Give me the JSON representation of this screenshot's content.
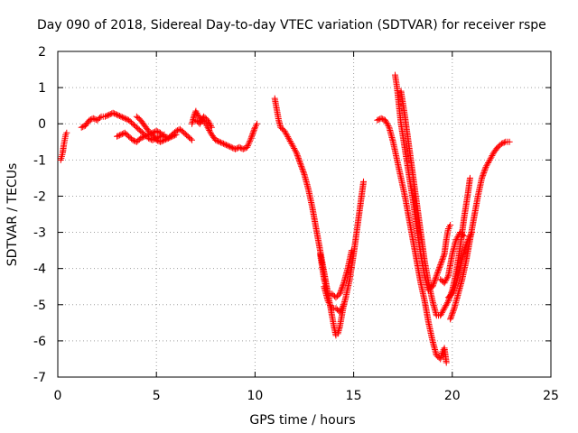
{
  "chart_data": {
    "type": "scatter",
    "title": "Day 090 of 2018, Sidereal Day-to-day VTEC variation (SDTVAR) for receiver rspe",
    "xlabel": "GPS time / hours",
    "ylabel": "SDTVAR / TECUs",
    "xlim": [
      0,
      25
    ],
    "ylim": [
      -7,
      2
    ],
    "xticks": [
      0,
      5,
      10,
      15,
      20,
      25
    ],
    "yticks": [
      2,
      1,
      0,
      -1,
      -2,
      -3,
      -4,
      -5,
      -6,
      -7
    ],
    "grid": true,
    "marker": "+",
    "color": "#ff0000",
    "series": [
      {
        "name": "arc-1",
        "points": [
          [
            0.15,
            -1.0
          ],
          [
            0.2,
            -0.9
          ],
          [
            0.25,
            -0.8
          ],
          [
            0.3,
            -0.6
          ],
          [
            0.35,
            -0.45
          ],
          [
            0.4,
            -0.3
          ],
          [
            0.45,
            -0.25
          ]
        ]
      },
      {
        "name": "arc-2",
        "points": [
          [
            1.2,
            -0.1
          ],
          [
            1.4,
            -0.05
          ],
          [
            1.6,
            0.1
          ],
          [
            1.8,
            0.15
          ],
          [
            2.0,
            0.1
          ],
          [
            2.2,
            0.2
          ],
          [
            2.4,
            0.2
          ],
          [
            2.6,
            0.25
          ],
          [
            2.8,
            0.3
          ],
          [
            3.0,
            0.25
          ],
          [
            3.2,
            0.2
          ],
          [
            3.4,
            0.15
          ],
          [
            3.6,
            0.1
          ],
          [
            3.8,
            0.0
          ],
          [
            4.0,
            -0.1
          ],
          [
            4.2,
            -0.2
          ],
          [
            4.4,
            -0.3
          ],
          [
            4.6,
            -0.4
          ],
          [
            4.8,
            -0.45
          ],
          [
            5.0,
            -0.4
          ],
          [
            5.2,
            -0.35
          ],
          [
            5.4,
            -0.3
          ]
        ]
      },
      {
        "name": "arc-3",
        "points": [
          [
            3.0,
            -0.35
          ],
          [
            3.2,
            -0.3
          ],
          [
            3.4,
            -0.25
          ],
          [
            3.6,
            -0.35
          ],
          [
            3.8,
            -0.45
          ],
          [
            4.0,
            -0.5
          ],
          [
            4.2,
            -0.4
          ],
          [
            4.4,
            -0.35
          ],
          [
            4.6,
            -0.3
          ],
          [
            4.8,
            -0.25
          ],
          [
            5.0,
            -0.2
          ],
          [
            5.2,
            -0.25
          ],
          [
            5.4,
            -0.35
          ],
          [
            5.6,
            -0.4
          ],
          [
            5.8,
            -0.3
          ],
          [
            6.0,
            -0.2
          ],
          [
            6.2,
            -0.15
          ],
          [
            6.4,
            -0.25
          ],
          [
            6.6,
            -0.35
          ],
          [
            6.8,
            -0.45
          ]
        ]
      },
      {
        "name": "arc-4",
        "points": [
          [
            4.0,
            0.2
          ],
          [
            4.2,
            0.1
          ],
          [
            4.4,
            -0.05
          ],
          [
            4.6,
            -0.2
          ],
          [
            4.8,
            -0.3
          ],
          [
            5.0,
            -0.45
          ],
          [
            5.2,
            -0.5
          ],
          [
            5.4,
            -0.45
          ],
          [
            5.6,
            -0.4
          ],
          [
            5.8,
            -0.35
          ],
          [
            6.0,
            -0.3
          ]
        ]
      },
      {
        "name": "arc-5",
        "points": [
          [
            6.8,
            0.0
          ],
          [
            6.9,
            0.2
          ],
          [
            7.0,
            0.35
          ],
          [
            7.1,
            0.25
          ],
          [
            7.3,
            0.1
          ],
          [
            7.5,
            0.0
          ],
          [
            7.6,
            -0.1
          ],
          [
            7.8,
            -0.3
          ],
          [
            8.0,
            -0.45
          ],
          [
            8.2,
            -0.5
          ],
          [
            8.4,
            -0.55
          ],
          [
            8.6,
            -0.6
          ],
          [
            8.8,
            -0.65
          ],
          [
            9.0,
            -0.7
          ],
          [
            9.2,
            -0.65
          ],
          [
            9.4,
            -0.7
          ],
          [
            9.6,
            -0.65
          ],
          [
            9.8,
            -0.4
          ],
          [
            10.0,
            -0.1
          ],
          [
            10.1,
            0.0
          ]
        ]
      },
      {
        "name": "arc-6",
        "points": [
          [
            7.0,
            0.1
          ],
          [
            7.2,
            0.0
          ],
          [
            7.4,
            0.2
          ],
          [
            7.6,
            0.1
          ],
          [
            7.8,
            -0.1
          ]
        ]
      },
      {
        "name": "arc-7",
        "points": [
          [
            11.0,
            0.7
          ],
          [
            11.1,
            0.4
          ],
          [
            11.2,
            0.1
          ],
          [
            11.3,
            -0.1
          ],
          [
            11.5,
            -0.2
          ],
          [
            11.7,
            -0.4
          ],
          [
            11.9,
            -0.6
          ],
          [
            12.1,
            -0.8
          ],
          [
            12.3,
            -1.1
          ],
          [
            12.5,
            -1.4
          ],
          [
            12.7,
            -1.8
          ],
          [
            12.9,
            -2.3
          ],
          [
            13.1,
            -2.9
          ],
          [
            13.3,
            -3.5
          ],
          [
            13.5,
            -4.1
          ],
          [
            13.7,
            -4.7
          ],
          [
            13.9,
            -5.3
          ],
          [
            14.0,
            -5.6
          ],
          [
            14.1,
            -5.85
          ],
          [
            14.2,
            -5.8
          ],
          [
            14.3,
            -5.6
          ],
          [
            14.4,
            -5.3
          ],
          [
            14.5,
            -5.0
          ],
          [
            14.6,
            -4.8
          ],
          [
            14.8,
            -4.3
          ],
          [
            15.0,
            -3.6
          ],
          [
            15.2,
            -2.8
          ],
          [
            15.4,
            -2.0
          ],
          [
            15.5,
            -1.6
          ]
        ]
      },
      {
        "name": "arc-8",
        "points": [
          [
            13.3,
            -3.6
          ],
          [
            13.5,
            -4.3
          ],
          [
            13.7,
            -4.7
          ],
          [
            13.9,
            -4.7
          ],
          [
            14.1,
            -4.8
          ],
          [
            14.3,
            -4.7
          ],
          [
            14.5,
            -4.4
          ],
          [
            14.7,
            -4.0
          ],
          [
            14.9,
            -3.5
          ]
        ]
      },
      {
        "name": "arc-9",
        "points": [
          [
            13.5,
            -4.5
          ],
          [
            13.7,
            -4.9
          ],
          [
            13.9,
            -5.1
          ],
          [
            14.1,
            -5.1
          ],
          [
            14.3,
            -5.2
          ],
          [
            14.5,
            -5.0
          ]
        ]
      },
      {
        "name": "arc-10",
        "points": [
          [
            16.2,
            0.1
          ],
          [
            16.4,
            0.15
          ],
          [
            16.6,
            0.1
          ],
          [
            16.8,
            -0.1
          ],
          [
            17.0,
            -0.5
          ],
          [
            17.2,
            -1.0
          ],
          [
            17.4,
            -1.5
          ],
          [
            17.6,
            -2.0
          ],
          [
            17.8,
            -2.6
          ],
          [
            18.0,
            -3.2
          ],
          [
            18.2,
            -3.8
          ],
          [
            18.4,
            -4.4
          ],
          [
            18.6,
            -4.9
          ],
          [
            18.8,
            -5.5
          ],
          [
            19.0,
            -6.0
          ],
          [
            19.2,
            -6.4
          ],
          [
            19.4,
            -6.5
          ],
          [
            19.5,
            -6.3
          ],
          [
            19.6,
            -6.2
          ],
          [
            19.7,
            -6.6
          ]
        ]
      },
      {
        "name": "arc-11",
        "points": [
          [
            17.1,
            1.35
          ],
          [
            17.2,
            1.0
          ],
          [
            17.3,
            0.5
          ],
          [
            17.4,
            0.0
          ],
          [
            17.6,
            -0.7
          ],
          [
            17.8,
            -1.4
          ],
          [
            18.0,
            -2.1
          ],
          [
            18.2,
            -2.9
          ],
          [
            18.4,
            -3.6
          ],
          [
            18.6,
            -4.2
          ],
          [
            18.8,
            -4.6
          ],
          [
            19.0,
            -4.5
          ],
          [
            19.2,
            -4.2
          ],
          [
            19.4,
            -3.9
          ],
          [
            19.6,
            -3.6
          ],
          [
            19.7,
            -3.2
          ],
          [
            19.8,
            -2.9
          ],
          [
            19.9,
            -2.8
          ]
        ]
      },
      {
        "name": "arc-12",
        "points": [
          [
            17.4,
            0.9
          ],
          [
            17.6,
            0.2
          ],
          [
            17.8,
            -0.6
          ],
          [
            18.0,
            -1.4
          ],
          [
            18.2,
            -2.2
          ],
          [
            18.4,
            -3.0
          ],
          [
            18.6,
            -3.8
          ],
          [
            18.8,
            -4.4
          ],
          [
            19.0,
            -4.9
          ],
          [
            19.2,
            -5.3
          ],
          [
            19.4,
            -5.3
          ],
          [
            19.6,
            -5.1
          ],
          [
            19.8,
            -4.9
          ],
          [
            20.0,
            -4.6
          ],
          [
            20.2,
            -4.1
          ],
          [
            20.4,
            -3.4
          ],
          [
            20.6,
            -2.6
          ],
          [
            20.8,
            -1.9
          ],
          [
            20.9,
            -1.5
          ]
        ]
      },
      {
        "name": "arc-13",
        "points": [
          [
            19.4,
            -4.3
          ],
          [
            19.6,
            -4.4
          ],
          [
            19.8,
            -4.2
          ],
          [
            20.0,
            -3.6
          ],
          [
            20.2,
            -3.2
          ],
          [
            20.4,
            -3.0
          ],
          [
            20.6,
            -3.1
          ]
        ]
      },
      {
        "name": "arc-14",
        "points": [
          [
            19.8,
            -4.8
          ],
          [
            20.0,
            -4.7
          ],
          [
            20.2,
            -4.4
          ],
          [
            20.4,
            -4.0
          ],
          [
            20.6,
            -3.5
          ],
          [
            20.8,
            -3.2
          ],
          [
            21.0,
            -3.0
          ]
        ]
      },
      {
        "name": "arc-15",
        "points": [
          [
            19.9,
            -5.4
          ],
          [
            20.1,
            -5.1
          ],
          [
            20.3,
            -4.7
          ],
          [
            20.5,
            -4.3
          ],
          [
            20.7,
            -3.8
          ],
          [
            20.9,
            -3.2
          ],
          [
            21.1,
            -2.6
          ],
          [
            21.3,
            -2.0
          ],
          [
            21.5,
            -1.5
          ],
          [
            21.7,
            -1.2
          ],
          [
            21.9,
            -1.0
          ],
          [
            22.1,
            -0.8
          ],
          [
            22.3,
            -0.65
          ],
          [
            22.5,
            -0.55
          ],
          [
            22.7,
            -0.5
          ],
          [
            22.9,
            -0.5
          ]
        ]
      }
    ]
  }
}
